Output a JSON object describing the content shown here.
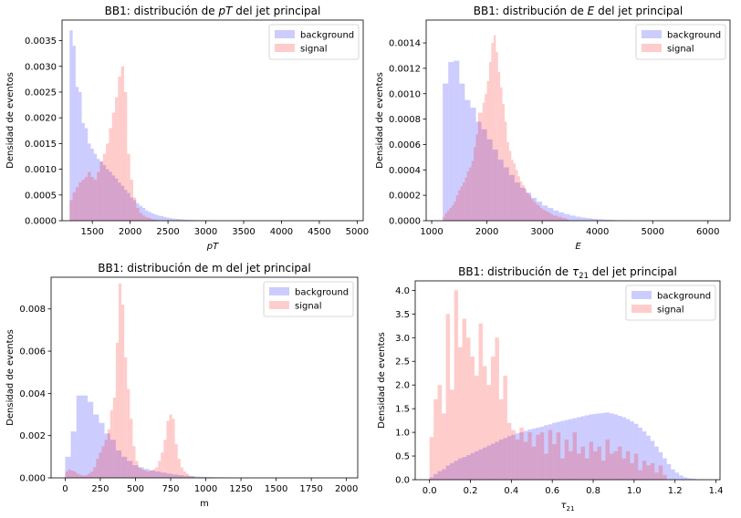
{
  "figure": {
    "legend_labels": {
      "background": "background",
      "signal": "signal"
    },
    "colors": {
      "background": "#0000ff",
      "signal": "#ff0000",
      "bar_opacity": 0.2,
      "axes": "#000000"
    }
  },
  "chart_data": [
    {
      "id": "pt",
      "type": "bar",
      "title_parts": [
        {
          "text": "BB1: distribución de ",
          "italic": false
        },
        {
          "text": "pT",
          "italic": true
        },
        {
          "text": " del jet principal",
          "italic": false
        }
      ],
      "xlabel_parts": [
        {
          "text": "pT",
          "italic": true
        }
      ],
      "ylabel": "Densidad de eventos",
      "xlim": [
        1100,
        5080
      ],
      "ylim": [
        0,
        0.0039
      ],
      "xticks": [
        1500,
        2000,
        2500,
        3000,
        3500,
        4000,
        4500,
        5000
      ],
      "yticks": [
        0,
        0.0005,
        0.001,
        0.0015,
        0.002,
        0.0025,
        0.003,
        0.0035
      ],
      "yticklabels": [
        "0.0000",
        "0.0005",
        "0.0010",
        "0.0015",
        "0.0020",
        "0.0025",
        "0.0030",
        "0.0035"
      ],
      "legend_position": "upper right",
      "grid": false,
      "series": [
        {
          "name": "background",
          "bin_start": 1200,
          "bin_width": 40,
          "values": [
            0.0037,
            0.0034,
            0.0026,
            0.0025,
            0.0019,
            0.0018,
            0.0015,
            0.0014,
            0.0013,
            0.0012,
            0.00115,
            0.00108,
            0.001,
            0.00095,
            0.00088,
            0.00082,
            0.00074,
            0.00068,
            0.0006,
            0.00054,
            0.00045,
            0.0004,
            0.00034,
            0.00029,
            0.00025,
            0.0002,
            0.00017,
            0.00014,
            0.00012,
            0.0001,
            9e-05,
            7.5e-05,
            6e-05,
            5e-05,
            4e-05,
            3.5e-05,
            3e-05,
            2.5e-05,
            2e-05,
            1.8e-05,
            1.5e-05,
            1.2e-05,
            1e-05,
            8e-06,
            6e-06,
            5e-06,
            4e-06,
            3e-06,
            2e-06,
            1e-06
          ]
        },
        {
          "name": "signal",
          "bin_start": 1200,
          "bin_width": 40,
          "values": [
            0.0004,
            0.00055,
            0.00065,
            0.00075,
            0.0008,
            0.00085,
            0.00095,
            0.00085,
            0.0008,
            0.00095,
            0.00115,
            0.0013,
            0.0015,
            0.0018,
            0.0021,
            0.0024,
            0.0028,
            0.003,
            0.0025,
            0.0013,
            0.0008,
            0.00045,
            0.00025,
            0.00015,
            0.0001,
            7e-05,
            5e-05,
            3e-05,
            2e-05,
            1e-05
          ]
        }
      ]
    },
    {
      "id": "e",
      "type": "bar",
      "title_parts": [
        {
          "text": "BB1: distribución de ",
          "italic": false
        },
        {
          "text": "E",
          "italic": true
        },
        {
          "text": " del jet principal",
          "italic": false
        }
      ],
      "xlabel_parts": [
        {
          "text": "E",
          "italic": true
        }
      ],
      "ylabel": "Densidad de eventos",
      "xlim": [
        900,
        6400
      ],
      "ylim": [
        0,
        0.00158
      ],
      "xticks": [
        1000,
        2000,
        3000,
        4000,
        5000,
        6000
      ],
      "yticks": [
        0,
        0.0002,
        0.0004,
        0.0006,
        0.0008,
        0.001,
        0.0012,
        0.0014
      ],
      "yticklabels": [
        "0.0000",
        "0.0002",
        "0.0004",
        "0.0006",
        "0.0008",
        "0.0010",
        "0.0012",
        "0.0014"
      ],
      "legend_position": "upper right",
      "grid": false,
      "series": [
        {
          "name": "background",
          "bin_start": 1200,
          "bin_width": 100,
          "values": [
            0.00108,
            0.00125,
            0.00126,
            0.00108,
            0.00095,
            0.00089,
            0.00078,
            0.00072,
            0.00064,
            0.00056,
            0.00048,
            0.00042,
            0.00036,
            0.0003,
            0.00026,
            0.00022,
            0.00018,
            0.00015,
            0.00012,
            0.0001,
            8e-05,
            6.5e-05,
            5.2e-05,
            4e-05,
            3.2e-05,
            2.5e-05,
            2e-05,
            1.5e-05,
            1.1e-05,
            8e-06,
            6e-06,
            4e-06,
            3e-06,
            2e-06,
            1e-06
          ]
        },
        {
          "name": "signal",
          "bin_start": 1200,
          "bin_width": 40,
          "values": [
            3e-05,
            6e-05,
            8e-05,
            0.0001,
            0.00012,
            0.00015,
            0.0002,
            0.00024,
            0.00027,
            0.0003,
            0.00034,
            0.00039,
            0.00042,
            0.00047,
            0.00058,
            0.00068,
            0.00085,
            0.00085,
            0.00093,
            0.001,
            0.0011,
            0.00125,
            0.0014,
            0.00146,
            0.00133,
            0.00117,
            0.00105,
            0.00092,
            0.00078,
            0.00062,
            0.00055,
            0.00048,
            0.00045,
            0.0004,
            0.00035,
            0.00031,
            0.00028,
            0.00025,
            0.00022,
            0.0002,
            0.00017,
            0.00015,
            0.00013,
            0.00012,
            0.0001,
            9e-05,
            8e-05,
            7e-05,
            6e-05,
            5e-05,
            4e-05,
            4e-05,
            3e-05,
            3e-05,
            2e-05,
            2e-05,
            1e-05
          ]
        }
      ]
    },
    {
      "id": "m",
      "type": "bar",
      "title_parts": [
        {
          "text": "BB1: distribución de m del jet principal",
          "italic": false
        }
      ],
      "xlabel_parts": [
        {
          "text": "m",
          "italic": false
        }
      ],
      "ylabel": "Densidad de eventos",
      "xlim": [
        -100,
        2080
      ],
      "ylim": [
        0,
        0.0095
      ],
      "xticks": [
        0,
        250,
        500,
        750,
        1000,
        1250,
        1500,
        1750,
        2000
      ],
      "yticks": [
        0,
        0.002,
        0.004,
        0.006,
        0.008
      ],
      "yticklabels": [
        "0.000",
        "0.002",
        "0.004",
        "0.006",
        "0.008"
      ],
      "legend_position": "upper right",
      "grid": false,
      "series": [
        {
          "name": "background",
          "bin_start": 0,
          "bin_width": 40,
          "values": [
            0.001,
            0.0022,
            0.0039,
            0.0039,
            0.0036,
            0.003,
            0.0026,
            0.0021,
            0.0018,
            0.0013,
            0.001,
            0.0008,
            0.0006,
            0.0005,
            0.00042,
            0.00035,
            0.0003,
            0.00025,
            0.0002,
            0.00016,
            0.00013,
            0.0001,
            8e-05,
            6e-05,
            5e-05,
            4e-05,
            3e-05,
            2.5e-05,
            2e-05,
            1.5e-05
          ]
        },
        {
          "name": "signal",
          "bin_start": 0,
          "bin_width": 20,
          "values": [
            0.0003,
            0.0004,
            0.00035,
            0.0003,
            0.0002,
            0.00015,
            0.0001,
            0.00012,
            0.0002,
            0.0003,
            0.0005,
            0.0009,
            0.0012,
            0.0015,
            0.0018,
            0.0023,
            0.0032,
            0.0038,
            0.0064,
            0.0092,
            0.0082,
            0.0057,
            0.0042,
            0.0028,
            0.0015,
            0.0008,
            0.0005,
            0.0004,
            0.00035,
            0.0003,
            0.00035,
            0.0004,
            0.0005,
            0.0008,
            0.0012,
            0.0018,
            0.0027,
            0.003,
            0.0028,
            0.0016,
            0.0009,
            0.0005,
            0.0003,
            0.0002,
            0.0001,
            8e-05
          ]
        }
      ]
    },
    {
      "id": "tau21",
      "type": "bar",
      "title_parts": [
        {
          "text": "BB1: distribución de ",
          "italic": false
        },
        {
          "text": "τ",
          "italic": true
        },
        {
          "text": "21",
          "italic": false,
          "sub": true
        },
        {
          "text": " del jet principal",
          "italic": false
        }
      ],
      "xlabel_parts": [
        {
          "text": "τ",
          "italic": true
        },
        {
          "text": "21",
          "italic": false,
          "sub": true
        }
      ],
      "ylabel": "Densidad de eventos",
      "xlim": [
        -0.07,
        1.42
      ],
      "ylim": [
        0,
        4.2
      ],
      "xticks": [
        0,
        0.2,
        0.4,
        0.6,
        0.8,
        1.0,
        1.2,
        1.4
      ],
      "xticklabels": [
        "0.0",
        "0.2",
        "0.4",
        "0.6",
        "0.8",
        "1.0",
        "1.2",
        "1.4"
      ],
      "yticks": [
        0,
        0.5,
        1,
        1.5,
        2,
        2.5,
        3,
        3.5,
        4
      ],
      "yticklabels": [
        "0.0",
        "0.5",
        "1.0",
        "1.5",
        "2.0",
        "2.5",
        "3.0",
        "3.5",
        "4.0"
      ],
      "legend_position": "upper right",
      "grid": false,
      "series": [
        {
          "name": "background",
          "bin_start": 0,
          "bin_width": 0.02,
          "values": [
            0.05,
            0.12,
            0.18,
            0.22,
            0.3,
            0.35,
            0.4,
            0.45,
            0.48,
            0.52,
            0.56,
            0.6,
            0.64,
            0.68,
            0.72,
            0.76,
            0.8,
            0.85,
            0.88,
            0.92,
            0.95,
            0.98,
            1.0,
            1.03,
            1.06,
            1.08,
            1.1,
            1.12,
            1.15,
            1.17,
            1.2,
            1.22,
            1.24,
            1.26,
            1.28,
            1.3,
            1.32,
            1.34,
            1.36,
            1.38,
            1.39,
            1.4,
            1.41,
            1.42,
            1.4,
            1.38,
            1.35,
            1.32,
            1.28,
            1.23,
            1.18,
            1.1,
            1.02,
            0.93,
            0.82,
            0.7,
            0.58,
            0.45,
            0.33,
            0.22,
            0.15,
            0.09,
            0.05,
            0.03,
            0.02,
            0.01,
            0.005,
            0.003
          ]
        },
        {
          "name": "signal",
          "bin_start": 0,
          "bin_width": 0.02,
          "values": [
            0.9,
            1.7,
            2.0,
            1.4,
            3.5,
            1.9,
            4.0,
            2.8,
            3.4,
            3.0,
            2.6,
            2.2,
            3.3,
            2.4,
            2.0,
            2.6,
            3.0,
            1.7,
            2.2,
            1.2,
            1.05,
            0.85,
            1.1,
            0.8,
            1.0,
            0.7,
            0.95,
            1.0,
            0.55,
            1.05,
            0.75,
            1.0,
            0.45,
            0.85,
            0.6,
            1.0,
            0.55,
            0.7,
            0.45,
            0.8,
            0.6,
            0.7,
            0.4,
            0.85,
            0.55,
            0.6,
            0.7,
            0.45,
            0.6,
            0.35,
            0.55,
            0.2,
            0.4,
            0.3,
            0.35,
            0.15,
            0.3,
            0.1
          ]
        }
      ]
    }
  ]
}
